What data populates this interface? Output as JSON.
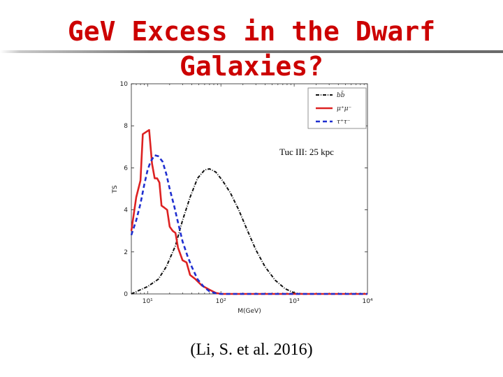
{
  "slide": {
    "title_line1": "GeV Excess in the Dwarf",
    "title_line2": "Galaxies?",
    "citation": "(Li, S. et al. 2016)"
  },
  "chart_data": {
    "type": "line",
    "xlabel": "M(GeV)",
    "ylabel": "TS",
    "xscale": "log",
    "xlim": [
      6,
      10000
    ],
    "ylim": [
      0,
      10
    ],
    "xticks": [
      {
        "v": 10,
        "label": "10¹"
      },
      {
        "v": 100,
        "label": "10²"
      },
      {
        "v": 1000,
        "label": "10³"
      },
      {
        "v": 10000,
        "label": "10⁴"
      }
    ],
    "yticks": [
      0,
      2,
      4,
      6,
      8,
      10
    ],
    "grid": false,
    "legend_position": "top-right",
    "annotation": "Tuc III: 25 kpc",
    "series": [
      {
        "name": "bb̄",
        "color": "#111111",
        "style": "dashdot",
        "points": [
          [
            6,
            0.0
          ],
          [
            8,
            0.2
          ],
          [
            10,
            0.35
          ],
          [
            14,
            0.7
          ],
          [
            18,
            1.3
          ],
          [
            24,
            2.3
          ],
          [
            30,
            3.5
          ],
          [
            38,
            4.6
          ],
          [
            48,
            5.5
          ],
          [
            60,
            5.9
          ],
          [
            70,
            5.95
          ],
          [
            85,
            5.8
          ],
          [
            105,
            5.4
          ],
          [
            135,
            4.8
          ],
          [
            175,
            4.0
          ],
          [
            225,
            3.1
          ],
          [
            300,
            2.1
          ],
          [
            400,
            1.3
          ],
          [
            550,
            0.65
          ],
          [
            750,
            0.25
          ],
          [
            1000,
            0.05
          ],
          [
            1300,
            0.0
          ],
          [
            10000,
            0.0
          ]
        ]
      },
      {
        "name": "μ⁺μ⁻",
        "color": "#dd2222",
        "style": "solid",
        "points": [
          [
            6,
            3.0
          ],
          [
            7,
            4.6
          ],
          [
            8,
            5.4
          ],
          [
            8.6,
            7.6
          ],
          [
            9.5,
            7.7
          ],
          [
            10.5,
            7.8
          ],
          [
            11.5,
            6.2
          ],
          [
            12.5,
            5.5
          ],
          [
            13.5,
            5.5
          ],
          [
            14.5,
            5.3
          ],
          [
            15.5,
            4.2
          ],
          [
            17,
            4.1
          ],
          [
            18.5,
            4.0
          ],
          [
            20,
            3.2
          ],
          [
            22,
            3.0
          ],
          [
            24,
            2.9
          ],
          [
            26,
            2.2
          ],
          [
            30,
            1.6
          ],
          [
            34,
            1.5
          ],
          [
            38,
            0.9
          ],
          [
            45,
            0.7
          ],
          [
            55,
            0.4
          ],
          [
            70,
            0.2
          ],
          [
            85,
            0.05
          ],
          [
            100,
            0.0
          ],
          [
            10000,
            0.0
          ]
        ]
      },
      {
        "name": "τ⁺τ⁻",
        "color": "#1f2fd0",
        "style": "dashed",
        "points": [
          [
            6,
            2.8
          ],
          [
            7,
            3.5
          ],
          [
            8,
            4.3
          ],
          [
            9,
            5.2
          ],
          [
            10,
            5.9
          ],
          [
            11,
            6.3
          ],
          [
            12.5,
            6.6
          ],
          [
            14,
            6.55
          ],
          [
            16,
            6.3
          ],
          [
            18,
            5.7
          ],
          [
            20,
            5.0
          ],
          [
            23,
            4.2
          ],
          [
            26,
            3.4
          ],
          [
            30,
            2.5
          ],
          [
            35,
            1.8
          ],
          [
            40,
            1.3
          ],
          [
            48,
            0.7
          ],
          [
            58,
            0.35
          ],
          [
            70,
            0.12
          ],
          [
            85,
            0.03
          ],
          [
            100,
            0.0
          ],
          [
            10000,
            0.0
          ]
        ]
      }
    ]
  }
}
